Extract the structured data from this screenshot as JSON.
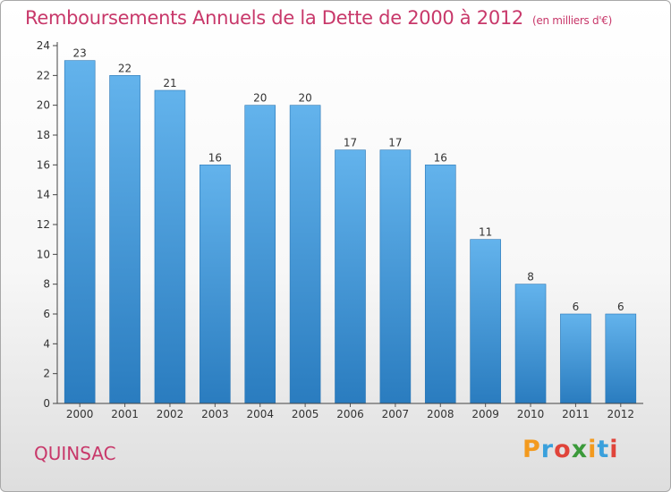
{
  "header": {
    "title": "Remboursements Annuels de la Dette de 2000 à 2012",
    "subtitle": "(en milliers d'€)"
  },
  "footer": {
    "commune": "QUINSAC",
    "logo": {
      "letters": [
        "P",
        "r",
        "o",
        "x",
        "i",
        "t",
        "i"
      ],
      "colors": [
        "#f39a1e",
        "#3aa0dc",
        "#e0443a",
        "#3b9a3a",
        "#f39a1e",
        "#3aa0dc",
        "#e0443a"
      ]
    }
  },
  "chart_data": {
    "type": "bar",
    "title": "Remboursements Annuels de la Dette de 2000 à 2012",
    "subtitle": "(en milliers d'€)",
    "categories": [
      "2000",
      "2001",
      "2002",
      "2003",
      "2004",
      "2005",
      "2006",
      "2007",
      "2008",
      "2009",
      "2010",
      "2011",
      "2012"
    ],
    "values": [
      23,
      22,
      21,
      16,
      20,
      20,
      17,
      17,
      16,
      11,
      8,
      6,
      6
    ],
    "ylim": [
      0,
      24
    ],
    "yticks": [
      0,
      2,
      4,
      6,
      8,
      10,
      12,
      14,
      16,
      18,
      20,
      22,
      24
    ],
    "grid": false,
    "legend": "none",
    "bar_color_top": "#63b3ec",
    "bar_color_bottom": "#2a7cbf"
  }
}
